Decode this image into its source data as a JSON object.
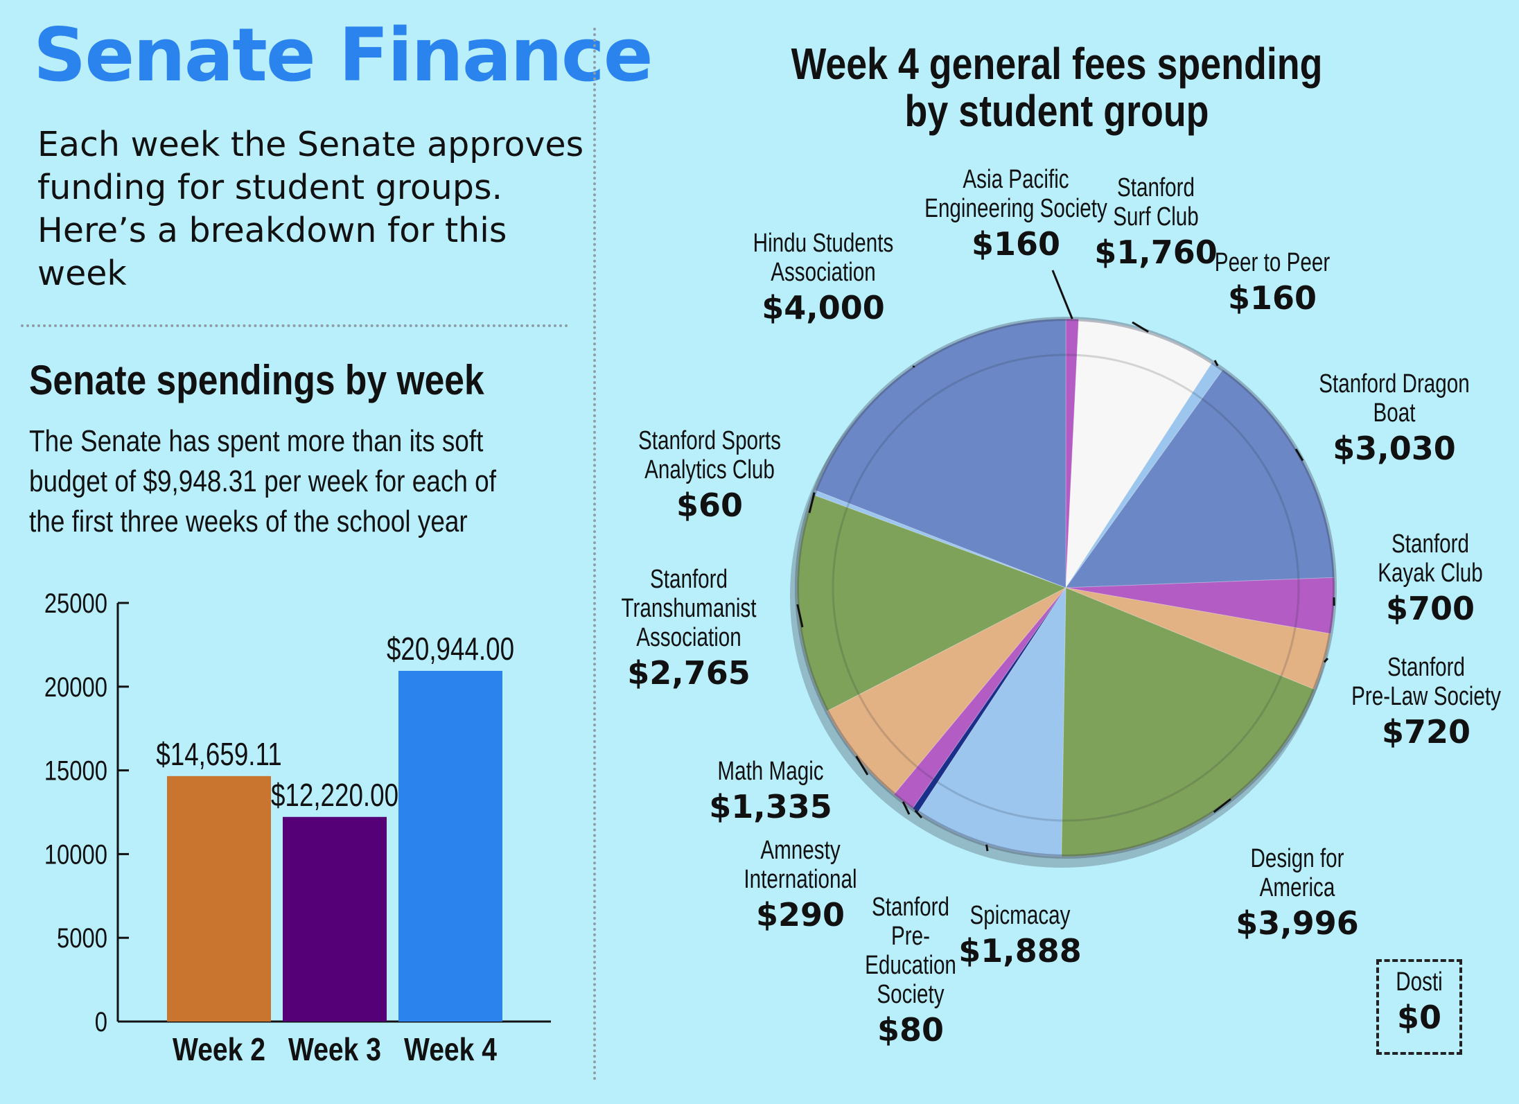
{
  "header": {
    "title": "Senate Finance",
    "intro_lines": [
      "Each week the Senate approves",
      "funding for student groups.",
      "Here’s a breakdown for this week"
    ]
  },
  "bar_section": {
    "title": "Senate spendings by week",
    "subtitle_lines": [
      "The Senate has spent more than its soft",
      "budget of $9,948.31 per week for each of",
      "the first three weeks of the school year"
    ]
  },
  "pie_section": {
    "title_lines": [
      "Week 4 general fees spending",
      "by student group"
    ]
  },
  "colors": {
    "background": "#b9eefb",
    "headline": "#2b84ee",
    "week2": "#c97530",
    "week3": "#560077",
    "week4": "#2b84ee",
    "pie_blue": "#6b87c6",
    "pie_green": "#7fa25a",
    "pie_purple": "#b35cc4",
    "pie_peach": "#e2b184",
    "pie_white": "#f7f7f7",
    "pie_lightblue": "#9cc6ee",
    "pie_navy": "#1a2f8a"
  },
  "chart_data": [
    {
      "type": "bar",
      "categories": [
        "Week 2",
        "Week 3",
        "Week 4"
      ],
      "values": [
        14659.11,
        12220.0,
        20944.0
      ],
      "data_labels": [
        "$14,659.11",
        "$12,220.00",
        "$20,944.00"
      ],
      "colors": [
        "#c97530",
        "#560077",
        "#2b84ee"
      ],
      "ylim": [
        0,
        25000
      ],
      "yticks": [
        "0",
        "5000",
        "10000",
        "15000",
        "20000",
        "25000"
      ],
      "title": "Senate spendings by week",
      "xlabel": "",
      "ylabel": "",
      "grid": false
    },
    {
      "type": "pie",
      "title": "Week 4 general fees spending by student group",
      "slices": [
        {
          "label": "Asia Pacific Engineering Society",
          "name_lines": [
            "Asia Pacific",
            "Engineering Society"
          ],
          "value": 160,
          "value_label": "$160",
          "color": "#b35cc4"
        },
        {
          "label": "Stanford Surf Club",
          "name_lines": [
            "Stanford",
            "Surf Club"
          ],
          "value": 1760,
          "value_label": "$1,760",
          "color": "#f7f7f7"
        },
        {
          "label": "Peer to Peer",
          "name_lines": [
            "Peer to Peer"
          ],
          "value": 160,
          "value_label": "$160",
          "color": "#9cc6ee"
        },
        {
          "label": "Stanford Dragon Boat",
          "name_lines": [
            "Stanford Dragon Boat"
          ],
          "value": 3030,
          "value_label": "$3,030",
          "color": "#6b87c6"
        },
        {
          "label": "Stanford Kayak Club",
          "name_lines": [
            "Stanford",
            "Kayak Club"
          ],
          "value": 700,
          "value_label": "$700",
          "color": "#b35cc4"
        },
        {
          "label": "Stanford Pre-Law Society",
          "name_lines": [
            "Stanford",
            "Pre-Law Society"
          ],
          "value": 720,
          "value_label": "$720",
          "color": "#e2b184"
        },
        {
          "label": "Design for America",
          "name_lines": [
            "Design for",
            "America"
          ],
          "value": 3996,
          "value_label": "$3,996",
          "color": "#7fa25a"
        },
        {
          "label": "Spicmacay",
          "name_lines": [
            "Spicmacay"
          ],
          "value": 1888,
          "value_label": "$1,888",
          "color": "#9cc6ee"
        },
        {
          "label": "Stanford Pre-Education Society",
          "name_lines": [
            "Stanford",
            "Pre-",
            "Education",
            "Society"
          ],
          "value": 80,
          "value_label": "$80",
          "color": "#1a2f8a"
        },
        {
          "label": "Amnesty International",
          "name_lines": [
            "Amnesty",
            "International"
          ],
          "value": 290,
          "value_label": "$290",
          "color": "#b35cc4"
        },
        {
          "label": "Math Magic",
          "name_lines": [
            "Math Magic"
          ],
          "value": 1335,
          "value_label": "$1,335",
          "color": "#e2b184"
        },
        {
          "label": "Stanford Transhumanist Association",
          "name_lines": [
            "Stanford",
            "Transhumanist",
            "Association"
          ],
          "value": 2765,
          "value_label": "$2,765",
          "color": "#7fa25a"
        },
        {
          "label": "Stanford Sports Analytics Club",
          "name_lines": [
            "Stanford Sports",
            "Analytics Club"
          ],
          "value": 60,
          "value_label": "$60",
          "color": "#9cc6ee"
        },
        {
          "label": "Hindu Students Association",
          "name_lines": [
            "Hindu Students",
            "Association"
          ],
          "value": 4000,
          "value_label": "$4,000",
          "color": "#6b87c6"
        }
      ],
      "extra_entry": {
        "label": "Dosti",
        "value": 0,
        "value_label": "$0"
      }
    }
  ]
}
